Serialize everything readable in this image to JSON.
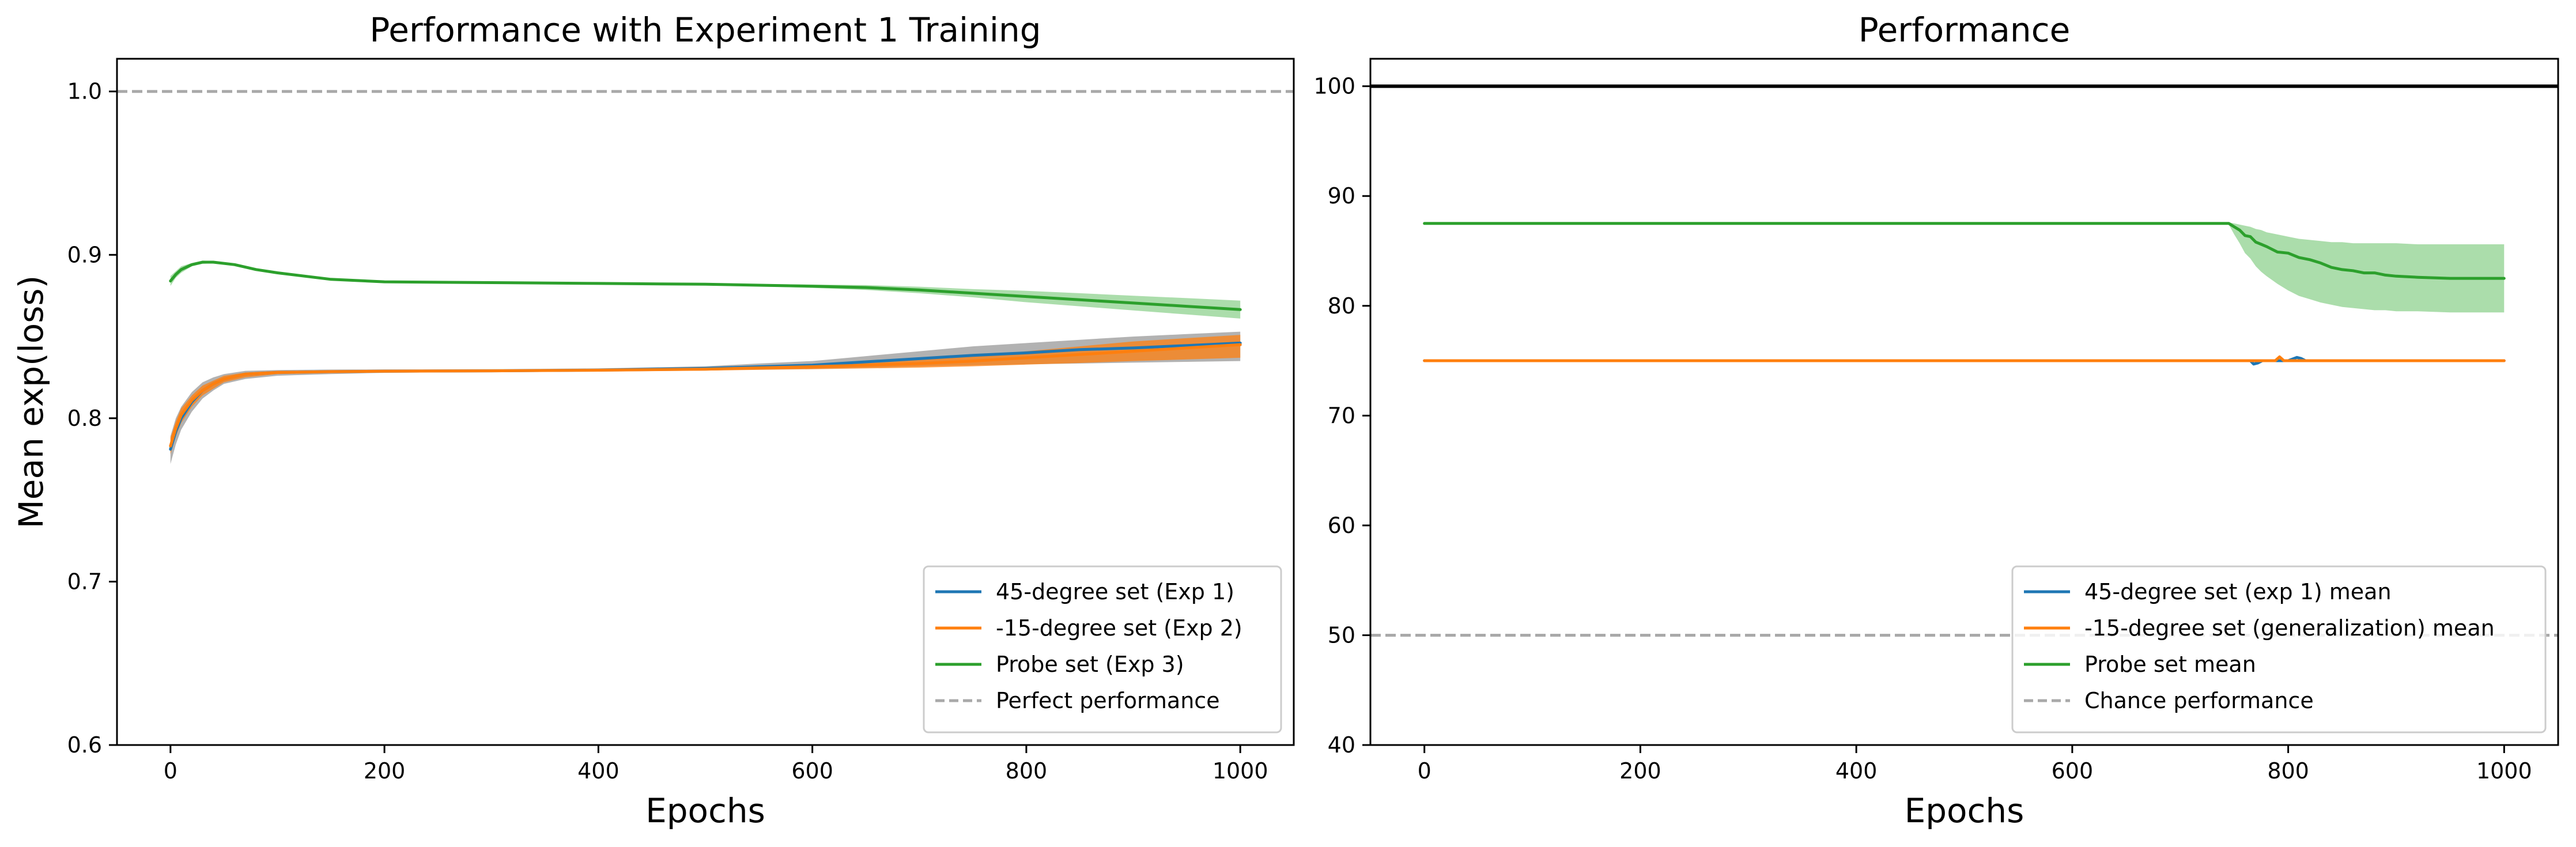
{
  "chart_data": [
    {
      "type": "line",
      "title": "Performance with Experiment 1 Training",
      "xlabel": "Epochs",
      "ylabel": "Mean exp(loss)",
      "xlim": [
        -50,
        1050
      ],
      "ylim": [
        0.6,
        1.02
      ],
      "xticks": [
        0,
        200,
        400,
        600,
        800,
        1000
      ],
      "xtick_labels": [
        "0",
        "200",
        "400",
        "600",
        "800",
        "1000"
      ],
      "yticks": [
        0.6,
        0.7,
        0.8,
        0.9,
        1.0
      ],
      "ytick_labels": [
        "0.6",
        "0.7",
        "0.8",
        "0.9",
        "1.0"
      ],
      "grid": false,
      "legend_position": "lower-right",
      "legend": [
        {
          "label": "45-degree set (Exp 1)",
          "color": "#1f77b4",
          "style": "solid"
        },
        {
          "label": "-15-degree set (Exp 2)",
          "color": "#ff7f0e",
          "style": "solid"
        },
        {
          "label": "Probe set (Exp 3)",
          "color": "#2ca02c",
          "style": "solid"
        },
        {
          "label": "Perfect performance",
          "color": "#a9a9a9",
          "style": "dashed"
        }
      ],
      "hlines": [
        {
          "y": 1.0,
          "color": "#a9a9a9",
          "style": "dashed"
        }
      ],
      "series": [
        {
          "color": "#1f77b4",
          "band_color": "#7f7f7f",
          "x": [
            0,
            5,
            10,
            20,
            30,
            40,
            50,
            70,
            100,
            150,
            200,
            300,
            400,
            500,
            550,
            600,
            650,
            700,
            750,
            800,
            850,
            900,
            950,
            1000
          ],
          "y": [
            0.781,
            0.792,
            0.8,
            0.81,
            0.817,
            0.821,
            0.824,
            0.827,
            0.828,
            0.8285,
            0.8288,
            0.829,
            0.8295,
            0.8305,
            0.8315,
            0.8325,
            0.8345,
            0.8365,
            0.8385,
            0.84,
            0.842,
            0.843,
            0.8445,
            0.846
          ],
          "lower": [
            0.772,
            0.784,
            0.793,
            0.804,
            0.812,
            0.817,
            0.821,
            0.824,
            0.826,
            0.827,
            0.8278,
            0.8282,
            0.8285,
            0.8292,
            0.8298,
            0.8302,
            0.831,
            0.8318,
            0.8325,
            0.833,
            0.8335,
            0.834,
            0.8345,
            0.835
          ],
          "upper": [
            0.789,
            0.8,
            0.807,
            0.816,
            0.822,
            0.825,
            0.827,
            0.829,
            0.8295,
            0.8298,
            0.8299,
            0.83,
            0.8305,
            0.8318,
            0.8335,
            0.835,
            0.838,
            0.841,
            0.844,
            0.846,
            0.848,
            0.85,
            0.8515,
            0.853
          ]
        },
        {
          "color": "#ff7f0e",
          "band_color": "#ff7f0e",
          "x": [
            0,
            5,
            10,
            20,
            30,
            40,
            50,
            70,
            100,
            150,
            200,
            300,
            400,
            500,
            550,
            600,
            650,
            700,
            750,
            800,
            850,
            900,
            950,
            1000
          ],
          "y": [
            0.783,
            0.794,
            0.802,
            0.811,
            0.817,
            0.821,
            0.824,
            0.827,
            0.828,
            0.8285,
            0.8288,
            0.829,
            0.8294,
            0.83,
            0.8308,
            0.8315,
            0.8325,
            0.8335,
            0.835,
            0.837,
            0.839,
            0.841,
            0.843,
            0.845
          ],
          "lower": [
            0.778,
            0.789,
            0.797,
            0.807,
            0.814,
            0.818,
            0.822,
            0.825,
            0.827,
            0.8278,
            0.8282,
            0.8285,
            0.8288,
            0.8292,
            0.8296,
            0.83,
            0.8305,
            0.831,
            0.8318,
            0.8328,
            0.8338,
            0.835,
            0.836,
            0.837
          ],
          "upper": [
            0.788,
            0.798,
            0.806,
            0.814,
            0.82,
            0.823,
            0.826,
            0.828,
            0.829,
            0.8292,
            0.8294,
            0.8296,
            0.83,
            0.8308,
            0.832,
            0.833,
            0.8345,
            0.836,
            0.838,
            0.841,
            0.844,
            0.847,
            0.849,
            0.851
          ]
        },
        {
          "color": "#2ca02c",
          "band_color": "#8fd18f",
          "x": [
            0,
            5,
            10,
            20,
            30,
            40,
            60,
            80,
            100,
            150,
            200,
            300,
            400,
            500,
            600,
            650,
            700,
            750,
            800,
            850,
            900,
            950,
            1000
          ],
          "y": [
            0.884,
            0.888,
            0.891,
            0.894,
            0.8955,
            0.8955,
            0.894,
            0.891,
            0.889,
            0.885,
            0.8835,
            0.883,
            0.8825,
            0.882,
            0.8808,
            0.88,
            0.8785,
            0.8765,
            0.8745,
            0.8725,
            0.8705,
            0.8685,
            0.8665
          ],
          "lower": [
            0.881,
            0.886,
            0.889,
            0.893,
            0.8945,
            0.8948,
            0.8935,
            0.8905,
            0.8885,
            0.8846,
            0.8832,
            0.8828,
            0.8822,
            0.8815,
            0.8798,
            0.8785,
            0.8765,
            0.874,
            0.871,
            0.8685,
            0.866,
            0.8635,
            0.861
          ],
          "upper": [
            0.887,
            0.89,
            0.893,
            0.895,
            0.8965,
            0.8962,
            0.8945,
            0.8915,
            0.8895,
            0.8854,
            0.8838,
            0.8832,
            0.8828,
            0.8825,
            0.8818,
            0.8815,
            0.8805,
            0.879,
            0.878,
            0.8765,
            0.875,
            0.8735,
            0.872
          ]
        }
      ]
    },
    {
      "type": "line",
      "title": "Performance",
      "xlabel": "Epochs",
      "ylabel": "",
      "xlim": [
        -50,
        1050
      ],
      "ylim": [
        40,
        102.5
      ],
      "xticks": [
        0,
        200,
        400,
        600,
        800,
        1000
      ],
      "xtick_labels": [
        "0",
        "200",
        "400",
        "600",
        "800",
        "1000"
      ],
      "yticks": [
        40,
        50,
        60,
        70,
        80,
        90,
        100
      ],
      "ytick_labels": [
        "40",
        "50",
        "60",
        "70",
        "80",
        "90",
        "100"
      ],
      "grid": false,
      "legend_position": "lower-right",
      "legend": [
        {
          "label": "45-degree set (exp 1) mean",
          "color": "#1f77b4",
          "style": "solid"
        },
        {
          "label": "-15-degree set (generalization) mean",
          "color": "#ff7f0e",
          "style": "solid"
        },
        {
          "label": "Probe set mean",
          "color": "#2ca02c",
          "style": "solid"
        },
        {
          "label": "Chance performance",
          "color": "#a9a9a9",
          "style": "dashed"
        }
      ],
      "hlines": [
        {
          "y": 100,
          "color": "#000000",
          "style": "solid"
        },
        {
          "y": 50,
          "color": "#a9a9a9",
          "style": "dashed"
        }
      ],
      "series": [
        {
          "color": "#1f77b4",
          "x": [
            0,
            765,
            768,
            772,
            776,
            780,
            800,
            808,
            812,
            816,
            1000
          ],
          "y": [
            75,
            75,
            74.7,
            74.8,
            75,
            75,
            75,
            75.3,
            75.2,
            75,
            75
          ]
        },
        {
          "color": "#ff7f0e",
          "x": [
            0,
            788,
            792,
            796,
            800,
            1000
          ],
          "y": [
            75,
            75,
            75.35,
            75,
            75,
            75
          ]
        },
        {
          "color": "#2ca02c",
          "band_color": "#8fd18f",
          "x": [
            0,
            740,
            745,
            750,
            755,
            760,
            765,
            770,
            775,
            780,
            790,
            800,
            810,
            820,
            830,
            840,
            850,
            860,
            870,
            880,
            890,
            900,
            920,
            950,
            980,
            1000
          ],
          "y": [
            87.5,
            87.5,
            87.5,
            87.2,
            86.9,
            86.4,
            86.3,
            85.8,
            85.6,
            85.4,
            84.9,
            84.8,
            84.4,
            84.2,
            83.9,
            83.5,
            83.3,
            83.2,
            83.0,
            83.0,
            82.8,
            82.7,
            82.6,
            82.5,
            82.5,
            82.5
          ],
          "lower": [
            87.5,
            87.5,
            87.4,
            86.5,
            85.7,
            84.8,
            84.3,
            83.6,
            83.1,
            82.7,
            82.0,
            81.4,
            80.9,
            80.6,
            80.3,
            80.1,
            79.9,
            79.8,
            79.7,
            79.6,
            79.6,
            79.5,
            79.5,
            79.4,
            79.4,
            79.4
          ],
          "upper": [
            87.5,
            87.5,
            87.6,
            87.5,
            87.4,
            87.3,
            87.2,
            87.0,
            86.9,
            86.7,
            86.5,
            86.3,
            86.1,
            86.0,
            85.9,
            85.8,
            85.8,
            85.7,
            85.7,
            85.7,
            85.7,
            85.7,
            85.6,
            85.6,
            85.6,
            85.6
          ]
        }
      ]
    }
  ]
}
